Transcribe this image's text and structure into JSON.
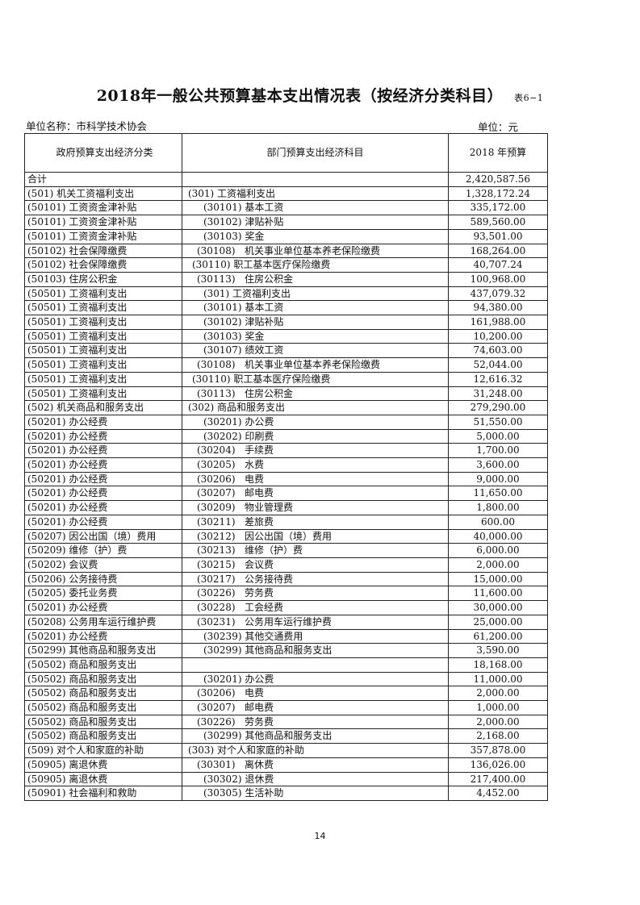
{
  "title": "2018年一般公共预算基本支出情况表（按经济分类科目）",
  "table_tag": "表6−1",
  "unit_name": "单位名称：市科学技术协会",
  "unit": "单位：元",
  "columns": [
    "政府预算支出经济分类",
    "部门预算支出经济科目",
    "2018 年预算"
  ],
  "rows": [
    [
      "合计",
      "",
      "2,420,587.56"
    ],
    [
      "(501) 机关工资福利支出",
      "(301) 工资福利支出",
      "1,328,172.24"
    ],
    [
      "(50101) 工资资金津补贴",
      "(30101) 基本工资",
      "335,172.00"
    ],
    [
      "(50101) 工资资金津补贴",
      "(30102) 津贴补贴",
      "589,560.00"
    ],
    [
      "(50101) 工资资金津补贴",
      "(30103) 奖金",
      "93,501.00"
    ],
    [
      "(50102) 社会保障缴费",
      "(30108)   机关事业单位基本养老保险缴费",
      "168,264.00"
    ],
    [
      "(50102) 社会保障缴费",
      "(30110) 职工基本医疗保险缴费",
      "40,707.24"
    ],
    [
      "(50103) 住房公积金",
      "(30113)   住房公积金",
      "100,968.00"
    ],
    [
      "(50501) 工资福利支出",
      "(301) 工资福利支出",
      "437,079.32"
    ],
    [
      "(50501) 工资福利支出",
      "(30101) 基本工资",
      "94,380.00"
    ],
    [
      "(50501) 工资福利支出",
      "(30102) 津贴补贴",
      "161,988.00"
    ],
    [
      "(50501) 工资福利支出",
      "(30103) 奖金",
      "10,200.00"
    ],
    [
      "(50501) 工资福利支出",
      "(30107) 绩效工资",
      "74,603.00"
    ],
    [
      "(50501) 工资福利支出",
      "(30108)   机关事业单位基本养老保险缴费",
      "52,044.00"
    ],
    [
      "(50501) 工资福利支出",
      "(30110) 职工基本医疗保险缴费",
      "12,616.32"
    ],
    [
      "(50501) 工资福利支出",
      "(30113)   住房公积金",
      "31,248.00"
    ],
    [
      "(502) 机关商品和服务支出",
      "(302) 商品和服务支出",
      "279,290.00"
    ],
    [
      "(50201) 办公经费",
      "(30201) 办公费",
      "51,550.00"
    ],
    [
      "(50201) 办公经费",
      "(30202) 印刷费",
      "5,000.00"
    ],
    [
      "(50201) 办公经费",
      "(30204)   手续费",
      "1,700.00"
    ],
    [
      "(50201) 办公经费",
      "(30205)   水费",
      "3,600.00"
    ],
    [
      "(50201) 办公经费",
      "(30206)   电费",
      "9,000.00"
    ],
    [
      "(50201) 办公经费",
      "(30207)   邮电费",
      "11,650.00"
    ],
    [
      "(50201) 办公经费",
      "(30209)   物业管理费",
      "1,800.00"
    ],
    [
      "(50201) 办公经费",
      "(30211)   差旅费",
      "600.00"
    ],
    [
      "(50207) 因公出国（境）费用",
      "(30212)   因公出国（境）费用",
      "40,000.00"
    ],
    [
      "(50209) 维修（护）费",
      "(30213)   维修（护）费",
      "6,000.00"
    ],
    [
      "(50202) 会议费",
      "(30215)   会议费",
      "2,000.00"
    ],
    [
      "(50206) 公务接待费",
      "(30217)   公务接待费",
      "15,000.00"
    ],
    [
      "(50205) 委托业务费",
      "(30226)   劳务费",
      "11,600.00"
    ],
    [
      "(50201) 办公经费",
      "(30228)   工会经费",
      "30,000.00"
    ],
    [
      "(50208) 公务用车运行维护费",
      "(30231)   公务用车运行维护费",
      "25,000.00"
    ],
    [
      "(50201) 办公经费",
      "(30239) 其他交通费用",
      "61,200.00"
    ],
    [
      "(50299) 其他商品和服务支出",
      "(30299) 其他商品和服务支出",
      "3,590.00"
    ],
    [
      "(50502) 商品和服务支出",
      "",
      "18,168.00"
    ],
    [
      "(50502) 商品和服务支出",
      "(30201) 办公费",
      "11,000.00"
    ],
    [
      "(50502) 商品和服务支出",
      "(30206)   电费",
      "2,000.00"
    ],
    [
      "(50502) 商品和服务支出",
      "(30207)   邮电费",
      "1,000.00"
    ],
    [
      "(50502) 商品和服务支出",
      "(30226)   劳务费",
      "2,000.00"
    ],
    [
      "(50502) 商品和服务支出",
      "(30299) 其他商品和服务支出",
      "2,168.00"
    ],
    [
      "(509) 对个人和家庭的补助",
      "(303) 对个人和家庭的补助",
      "357,878.00"
    ],
    [
      "(50905) 离退休费",
      "(30301)   离休费",
      "136,026.00"
    ],
    [
      "(50905) 离退休费",
      "(30302) 退休费",
      "217,400.00"
    ],
    [
      "(50901) 社会福利和救助",
      "(30305) 生活补助",
      "4,452.00"
    ]
  ],
  "page_number": "14"
}
